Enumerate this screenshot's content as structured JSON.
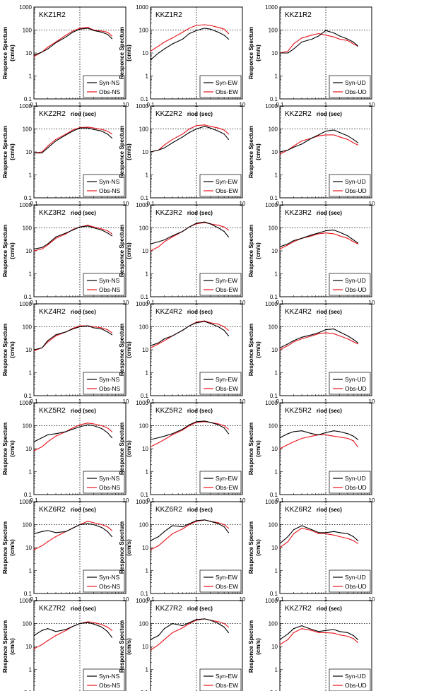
{
  "figure": {
    "row_stations": [
      "KKZ1R2",
      "KKZ2R2",
      "KKZ3R2",
      "KKZ4R2",
      "KKZ5R2",
      "KKZ6R2",
      "KKZ7R2"
    ],
    "components": [
      "NS",
      "EW",
      "UD"
    ],
    "ylabel_line1": "Responce Spectum",
    "ylabel_line2": "(cm/s)",
    "xlabel": "Period (sec)",
    "xticks": [
      "0.1",
      "1",
      "10"
    ],
    "yticks": [
      "0.1",
      "1",
      "10",
      "100",
      "1000"
    ],
    "colors": {
      "syn": "#000000",
      "obs": "#e8141b"
    }
  },
  "chart_data": {
    "type": "line",
    "xscale": "log",
    "yscale": "log",
    "xlim": [
      0.1,
      10
    ],
    "ylim": [
      0.1,
      1000
    ],
    "x": [
      0.1,
      0.15,
      0.2,
      0.3,
      0.5,
      0.7,
      1.0,
      1.5,
      2.0,
      3.0,
      4.0,
      5.0
    ],
    "panels": [
      {
        "title": "KKZ1R2",
        "series": [
          {
            "name": "Syn-NS",
            "values": [
              8,
              11,
              15,
              28,
              50,
              80,
              110,
              120,
              95,
              80,
              65,
              42
            ]
          },
          {
            "name": "Obs-NS",
            "values": [
              7,
              11,
              18,
              30,
              60,
              90,
              120,
              130,
              100,
              90,
              80,
              55
            ]
          }
        ]
      },
      {
        "title": "KKZ1R2",
        "series": [
          {
            "name": "Syn-EW",
            "values": [
              5,
              10,
              15,
              25,
              40,
              70,
              95,
              120,
              110,
              80,
              60,
              40
            ]
          },
          {
            "name": "Obs-EW",
            "values": [
              12,
              20,
              30,
              45,
              80,
              120,
              160,
              170,
              160,
              130,
              110,
              70
            ]
          }
        ]
      },
      {
        "title": "KKZ1R2",
        "series": [
          {
            "name": "Syn-UD",
            "values": [
              10,
              10,
              15,
              30,
              40,
              55,
              95,
              75,
              55,
              40,
              30,
              20
            ]
          },
          {
            "name": "Obs-UD",
            "values": [
              10,
              12,
              25,
              45,
              60,
              70,
              60,
              50,
              40,
              35,
              25,
              20
            ]
          }
        ]
      },
      {
        "title": "KKZ2R2",
        "series": [
          {
            "name": "Syn-NS",
            "values": [
              9,
              9,
              15,
              30,
              55,
              80,
              110,
              110,
              95,
              80,
              60,
              40
            ]
          },
          {
            "name": "Obs-NS",
            "values": [
              9,
              10,
              18,
              35,
              60,
              90,
              115,
              120,
              110,
              95,
              80,
              60
            ]
          }
        ]
      },
      {
        "title": "KKZ2R2",
        "series": [
          {
            "name": "Syn-EW",
            "values": [
              10,
              12,
              15,
              25,
              45,
              70,
              100,
              130,
              110,
              80,
              60,
              35
            ]
          },
          {
            "name": "Obs-EW",
            "values": [
              10,
              12,
              20,
              35,
              60,
              100,
              140,
              150,
              130,
              110,
              90,
              60
            ]
          }
        ]
      },
      {
        "title": "KKZ2R2",
        "series": [
          {
            "name": "Syn-UD",
            "values": [
              10,
              12,
              16,
              22,
              40,
              55,
              80,
              90,
              70,
              50,
              35,
              25
            ]
          },
          {
            "name": "Obs-UD",
            "values": [
              8,
              12,
              18,
              30,
              40,
              50,
              55,
              55,
              45,
              35,
              25,
              20
            ]
          }
        ]
      },
      {
        "title": "KKZ3R2",
        "series": [
          {
            "name": "Syn-NS",
            "values": [
              12,
              14,
              20,
              40,
              60,
              80,
              110,
              120,
              100,
              80,
              60,
              45
            ]
          },
          {
            "name": "Obs-NS",
            "values": [
              10,
              12,
              18,
              35,
              55,
              85,
              110,
              130,
              110,
              90,
              75,
              55
            ]
          }
        ]
      },
      {
        "title": "KKZ3R2",
        "series": [
          {
            "name": "Syn-EW",
            "values": [
              20,
              25,
              30,
              45,
              70,
              110,
              160,
              180,
              150,
              100,
              70,
              40
            ]
          },
          {
            "name": "Obs-EW",
            "values": [
              10,
              15,
              25,
              40,
              70,
              110,
              150,
              170,
              150,
              130,
              110,
              80
            ]
          }
        ]
      },
      {
        "title": "KKZ3R2",
        "series": [
          {
            "name": "Syn-UD",
            "values": [
              15,
              20,
              28,
              35,
              50,
              60,
              75,
              80,
              65,
              45,
              30,
              22
            ]
          },
          {
            "name": "Obs-UD",
            "values": [
              12,
              18,
              25,
              35,
              45,
              55,
              60,
              55,
              45,
              35,
              25,
              20
            ]
          }
        ]
      },
      {
        "title": "KKZ4R2",
        "series": [
          {
            "name": "Syn-NS",
            "values": [
              10,
              12,
              25,
              45,
              60,
              80,
              100,
              110,
              90,
              80,
              60,
              45
            ]
          },
          {
            "name": "Obs-NS",
            "values": [
              9,
              12,
              22,
              40,
              60,
              85,
              110,
              110,
              100,
              90,
              75,
              55
            ]
          }
        ]
      },
      {
        "title": "KKZ4R2",
        "series": [
          {
            "name": "Syn-EW",
            "values": [
              15,
              20,
              30,
              40,
              70,
              110,
              150,
              170,
              140,
              100,
              70,
              40
            ]
          },
          {
            "name": "Obs-EW",
            "values": [
              12,
              18,
              25,
              40,
              70,
              110,
              160,
              180,
              150,
              130,
              100,
              70
            ]
          }
        ]
      },
      {
        "title": "KKZ4R2",
        "series": [
          {
            "name": "Syn-UD",
            "values": [
              12,
              18,
              25,
              35,
              45,
              55,
              75,
              80,
              60,
              40,
              28,
              20
            ]
          },
          {
            "name": "Obs-UD",
            "values": [
              10,
              15,
              22,
              30,
              40,
              50,
              55,
              50,
              40,
              30,
              22,
              18
            ]
          }
        ]
      },
      {
        "title": "KKZ5R2",
        "series": [
          {
            "name": "Syn-NS",
            "values": [
              20,
              30,
              40,
              45,
              55,
              70,
              90,
              110,
              100,
              75,
              50,
              30
            ]
          },
          {
            "name": "Obs-NS",
            "values": [
              8,
              12,
              20,
              35,
              55,
              80,
              110,
              130,
              120,
              100,
              80,
              55
            ]
          }
        ]
      },
      {
        "title": "KKZ5R2",
        "series": [
          {
            "name": "Syn-EW",
            "values": [
              25,
              30,
              35,
              45,
              70,
              110,
              150,
              160,
              140,
              110,
              80,
              45
            ]
          },
          {
            "name": "Obs-EW",
            "values": [
              12,
              18,
              25,
              40,
              65,
              100,
              140,
              150,
              140,
              120,
              100,
              70
            ]
          }
        ]
      },
      {
        "title": "KKZ5R2",
        "series": [
          {
            "name": "Syn-UD",
            "values": [
              30,
              45,
              55,
              60,
              45,
              40,
              50,
              60,
              55,
              45,
              35,
              25
            ]
          },
          {
            "name": "Obs-UD",
            "values": [
              10,
              15,
              20,
              28,
              35,
              40,
              40,
              35,
              32,
              28,
              22,
              12
            ]
          }
        ]
      },
      {
        "title": "KKZ6R2",
        "series": [
          {
            "name": "Syn-NS",
            "values": [
              40,
              50,
              55,
              45,
              50,
              70,
              100,
              110,
              100,
              75,
              50,
              30
            ]
          },
          {
            "name": "Obs-NS",
            "values": [
              8,
              12,
              18,
              30,
              50,
              70,
              100,
              140,
              120,
              100,
              80,
              55
            ]
          }
        ]
      },
      {
        "title": "KKZ6R2",
        "series": [
          {
            "name": "Syn-EW",
            "values": [
              20,
              30,
              50,
              90,
              80,
              110,
              150,
              160,
              140,
              110,
              80,
              45
            ]
          },
          {
            "name": "Obs-EW",
            "values": [
              8,
              12,
              20,
              40,
              65,
              100,
              140,
              160,
              140,
              120,
              100,
              70
            ]
          }
        ]
      },
      {
        "title": "KKZ6R2",
        "series": [
          {
            "name": "Syn-UD",
            "values": [
              15,
              30,
              60,
              90,
              60,
              45,
              45,
              50,
              45,
              40,
              30,
              20
            ]
          },
          {
            "name": "Obs-UD",
            "values": [
              10,
              18,
              40,
              70,
              55,
              40,
              40,
              35,
              30,
              25,
              20,
              15
            ]
          }
        ]
      },
      {
        "title": "KKZ7R2",
        "series": [
          {
            "name": "Syn-NS",
            "values": [
              30,
              50,
              60,
              45,
              55,
              75,
              100,
              110,
              95,
              70,
              45,
              25
            ]
          },
          {
            "name": "Obs-NS",
            "values": [
              8,
              12,
              18,
              30,
              50,
              75,
              100,
              120,
              110,
              90,
              70,
              50
            ]
          }
        ]
      },
      {
        "title": "KKZ7R2",
        "series": [
          {
            "name": "Syn-EW",
            "values": [
              20,
              30,
              60,
              100,
              80,
              110,
              150,
              160,
              140,
              100,
              70,
              40
            ]
          },
          {
            "name": "Obs-EW",
            "values": [
              7,
              12,
              20,
              40,
              65,
              100,
              140,
              160,
              140,
              120,
              100,
              70
            ]
          }
        ]
      },
      {
        "title": "KKZ7R2",
        "series": [
          {
            "name": "Syn-UD",
            "values": [
              20,
              35,
              60,
              80,
              55,
              45,
              50,
              55,
              45,
              40,
              30,
              20
            ]
          },
          {
            "name": "Obs-UD",
            "values": [
              12,
              20,
              40,
              60,
              50,
              40,
              40,
              38,
              32,
              28,
              22,
              15
            ]
          }
        ]
      }
    ]
  }
}
